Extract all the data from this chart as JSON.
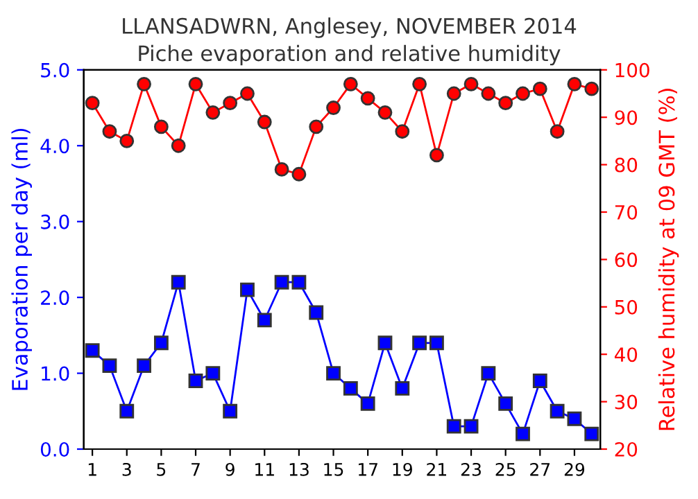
{
  "chart_data": {
    "type": "line",
    "title": "LLANSADWRN, Anglesey, NOVEMBER 2014",
    "subtitle": "Piche evaporation and relative humidity",
    "ylabel": "Evaporation per day (ml)",
    "y2label": "Relative humidity at 09 GMT (%)",
    "x": [
      1,
      2,
      3,
      4,
      5,
      6,
      7,
      8,
      9,
      10,
      11,
      12,
      13,
      14,
      15,
      16,
      17,
      18,
      19,
      20,
      21,
      22,
      23,
      24,
      25,
      26,
      27,
      28,
      29,
      30
    ],
    "xlim": [
      0.5,
      30.5
    ],
    "xticks": [
      1,
      3,
      5,
      7,
      9,
      11,
      13,
      15,
      17,
      19,
      21,
      23,
      25,
      27,
      29
    ],
    "ylim": [
      0,
      5
    ],
    "yticks": [
      {
        "value": 0,
        "label": "0.0"
      },
      {
        "value": 1,
        "label": "1.0"
      },
      {
        "value": 2,
        "label": "2.0"
      },
      {
        "value": 3,
        "label": "3.0"
      },
      {
        "value": 4,
        "label": "4.0"
      },
      {
        "value": 5,
        "label": "5.0"
      }
    ],
    "y2lim": [
      20,
      100
    ],
    "y2ticks": [
      20,
      30,
      40,
      50,
      60,
      70,
      80,
      90,
      100
    ],
    "grid": false,
    "legend": false,
    "series": [
      {
        "color": "#0000ff",
        "marker": "square",
        "values": [
          1.3,
          1.1,
          0.5,
          1.1,
          1.4,
          2.2,
          0.9,
          1.0,
          0.5,
          2.1,
          1.7,
          2.2,
          2.2,
          1.8,
          1.0,
          0.8,
          0.6,
          1.4,
          0.8,
          1.4,
          1.4,
          0.3,
          0.3,
          1.0,
          0.6,
          0.2,
          0.9,
          0.5,
          0.4,
          0.2
        ]
      },
      {
        "color": "#ff0000",
        "marker": "circle",
        "axis": "y2",
        "values": [
          93,
          87,
          85,
          97,
          88,
          84,
          97,
          91,
          93,
          95,
          89,
          79,
          78,
          88,
          92,
          97,
          94,
          91,
          87,
          97,
          82,
          95,
          97,
          95,
          93,
          95,
          96,
          87,
          97,
          96
        ]
      }
    ]
  }
}
